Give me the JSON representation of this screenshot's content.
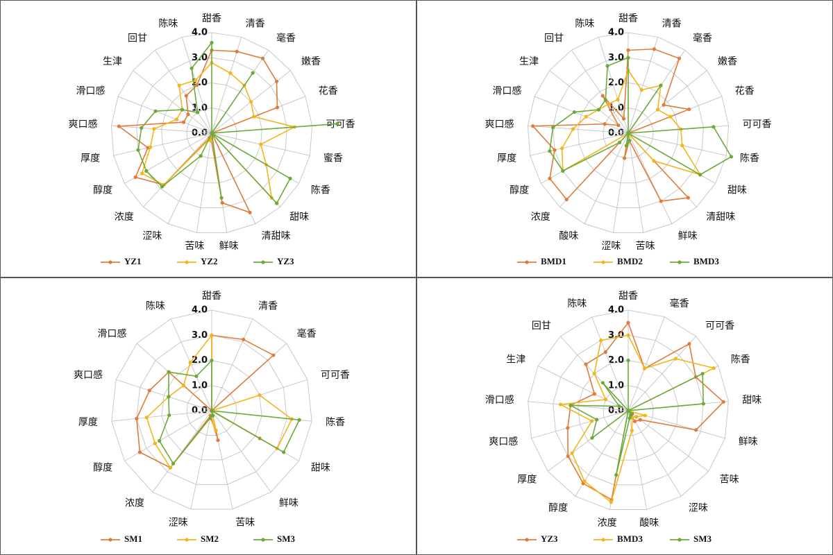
{
  "chart_data": [
    {
      "type": "radar",
      "categories": [
        "甜香",
        "清香",
        "毫香",
        "嫩香",
        "花香",
        "可可香",
        "蜜香",
        "陈香",
        "甜味",
        "清甜味",
        "鲜味",
        "苦味",
        "涩味",
        "浓度",
        "醇度",
        "厚度",
        "爽口感",
        "滑口感",
        "生津",
        "回甘",
        "陈味"
      ],
      "series": [
        {
          "name": "YZ1",
          "color": "#e07b39",
          "values": [
            3.3,
            3.4,
            3.6,
            3.3,
            2.8,
            0,
            0,
            0,
            0,
            3.5,
            2.8,
            0.2,
            0.2,
            2.8,
            3.5,
            2.6,
            3.7,
            1.2,
            1.2,
            1.8,
            2.0
          ]
        },
        {
          "name": "YZ2",
          "color": "#f2b51c",
          "values": [
            2.8,
            2.5,
            2.3,
            2.0,
            1.8,
            3.3,
            2.0,
            2.5,
            3.5,
            0,
            0,
            0.3,
            0.3,
            2.8,
            3.2,
            2.5,
            2.3,
            1.5,
            1.5,
            2.3,
            2.2
          ]
        },
        {
          "name": "YZ3",
          "color": "#6aaa3a",
          "values": [
            3.6,
            0,
            2.9,
            0,
            0,
            5.0,
            0,
            3.6,
            3.8,
            0,
            2.6,
            0,
            1.0,
            2.9,
            3.0,
            3.0,
            2.8,
            2.4,
            1.5,
            1.0,
            2.7
          ]
        }
      ],
      "ylim": [
        0,
        4
      ],
      "yticks": [
        {
          "value": 0,
          "label": "0.0"
        },
        {
          "value": 1,
          "label": "1.0"
        },
        {
          "value": 2,
          "label": "2.0"
        },
        {
          "value": 3,
          "label": "3.0"
        },
        {
          "value": 4,
          "label": "4.0"
        }
      ],
      "legend": "bottom"
    },
    {
      "type": "radar",
      "categories": [
        "甜香",
        "清香",
        "毫香",
        "嫩香",
        "花香",
        "可可香",
        "陈香",
        "甜味",
        "清甜味",
        "鲜味",
        "苦味",
        "涩味",
        "酸味",
        "浓度",
        "醇度",
        "厚度",
        "爽口感",
        "滑口感",
        "生津",
        "回甘",
        "陈味"
      ],
      "series": [
        {
          "name": "BMD1",
          "color": "#e07b39",
          "values": [
            3.3,
            3.5,
            3.6,
            1.8,
            2.6,
            0,
            0,
            0,
            3.5,
            3.0,
            0.3,
            1.0,
            0,
            3.6,
            3.6,
            3.0,
            3.8,
            1.0,
            0.5,
            1.8,
            0.6
          ]
        },
        {
          "name": "BMD2",
          "color": "#f2b51c",
          "values": [
            2.5,
            1.8,
            2.3,
            1.5,
            1.8,
            2.1,
            2.2,
            3.3,
            1.5,
            0,
            0,
            0.5,
            0,
            0,
            3.0,
            2.7,
            2.2,
            1.8,
            1.5,
            1.4,
            1.4
          ]
        },
        {
          "name": "BMD3",
          "color": "#6aaa3a",
          "values": [
            3.0,
            0,
            2.3,
            0,
            0,
            3.4,
            4.2,
            3.3,
            0,
            0,
            0.3,
            0.5,
            0,
            0.5,
            3.0,
            3.2,
            3.0,
            2.3,
            1.5,
            1.6,
            2.8
          ]
        }
      ],
      "ylim": [
        0,
        4
      ],
      "yticks": [
        {
          "value": 0,
          "label": "0.0"
        },
        {
          "value": 1,
          "label": "1.0"
        },
        {
          "value": 2,
          "label": "2.0"
        },
        {
          "value": 3,
          "label": "3.0"
        },
        {
          "value": 4,
          "label": "4.0"
        }
      ],
      "legend": "bottom"
    },
    {
      "type": "radar",
      "categories": [
        "甜香",
        "清香",
        "毫香",
        "可可香",
        "陈香",
        "甜味",
        "鲜味",
        "苦味",
        "涩味",
        "浓度",
        "醇度",
        "厚度",
        "爽口感",
        "滑口感",
        "陈味"
      ],
      "series": [
        {
          "name": "SM1",
          "color": "#e07b39",
          "values": [
            3.0,
            3.1,
            3.3,
            0,
            0,
            2.2,
            0,
            1.2,
            0.2,
            2.8,
            3.3,
            3.0,
            2.6,
            2.3,
            0
          ]
        },
        {
          "name": "SM2",
          "color": "#f2b51c",
          "values": [
            3.0,
            0,
            0,
            2.0,
            3.2,
            3.0,
            0,
            0.8,
            0.3,
            2.8,
            2.6,
            2.6,
            1.8,
            1.5,
            2.1
          ]
        },
        {
          "name": "SM3",
          "color": "#6aaa3a",
          "values": [
            2.0,
            0,
            0,
            0,
            3.5,
            3.3,
            0,
            0.2,
            0.3,
            2.6,
            2.4,
            1.7,
            1.8,
            2.3,
            1.5
          ]
        }
      ],
      "ylim": [
        0,
        4
      ],
      "yticks": [
        {
          "value": 0,
          "label": "0.0"
        },
        {
          "value": 1,
          "label": "1.0"
        },
        {
          "value": 2,
          "label": "2.0"
        },
        {
          "value": 3,
          "label": "3.0"
        },
        {
          "value": 4,
          "label": "4.0"
        }
      ],
      "legend": "bottom"
    },
    {
      "type": "radar",
      "categories": [
        "甜香",
        "毫香",
        "可可香",
        "陈香",
        "甜味",
        "鲜味",
        "苦味",
        "涩味",
        "酸味",
        "浓度",
        "醇度",
        "厚度",
        "爽口感",
        "滑口感",
        "生津",
        "回甘",
        "陈味"
      ],
      "series": [
        {
          "name": "YZ3",
          "color": "#e07b39",
          "values": [
            3.5,
            1.8,
            3.6,
            3.0,
            3.8,
            2.8,
            0.6,
            0.5,
            0,
            3.6,
            3.4,
            3.0,
            2.5,
            2.3,
            1.5,
            2.5,
            2.5
          ]
        },
        {
          "name": "BMD3",
          "color": "#f2b51c",
          "values": [
            3.0,
            1.8,
            2.8,
            3.8,
            0,
            0.7,
            0.4,
            0.3,
            0.8,
            3.7,
            3.3,
            2.8,
            1.5,
            2.7,
            1.0,
            2.0,
            3.0
          ]
        },
        {
          "name": "SM3",
          "color": "#6aaa3a",
          "values": [
            2.0,
            0,
            0,
            3.3,
            3.0,
            0,
            0.2,
            0.2,
            0.3,
            2.6,
            0,
            1.8,
            1.3,
            2.3,
            0.4,
            1.5,
            0
          ]
        }
      ],
      "ylim": [
        0,
        4
      ],
      "yticks": [
        {
          "value": 0,
          "label": "0.0"
        },
        {
          "value": 1,
          "label": "1.0"
        },
        {
          "value": 2,
          "label": "2.0"
        },
        {
          "value": 3,
          "label": "3.0"
        },
        {
          "value": 4,
          "label": "4.0"
        }
      ],
      "legend": "bottom"
    }
  ]
}
